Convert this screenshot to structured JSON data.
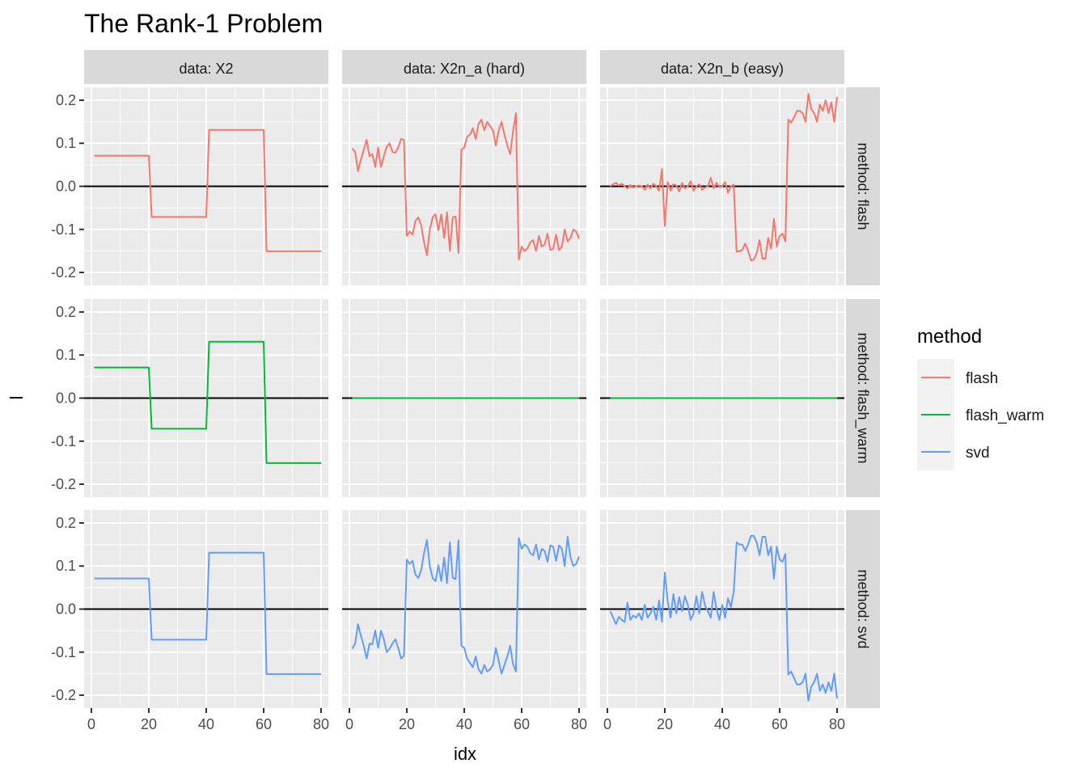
{
  "chart_data": {
    "type": "line",
    "title": "The Rank-1 Problem",
    "xlabel": "idx",
    "ylabel": "l",
    "xlim": [
      0,
      80
    ],
    "ylim": [
      -0.23,
      0.23
    ],
    "x_ticks": [
      0,
      20,
      40,
      60,
      80
    ],
    "x_tick_labels": [
      "0",
      "20",
      "40",
      "60",
      "80"
    ],
    "y_ticks": [
      0.2,
      0.1,
      0.0,
      -0.1,
      -0.2
    ],
    "y_tick_labels": [
      "0.2",
      "0.1",
      "0.0",
      "-0.1",
      "-0.2"
    ],
    "reference_line_y": 0,
    "grid": true,
    "legend": {
      "title": "method",
      "placement": "right",
      "entries": [
        {
          "label": "flash",
          "color": "#F8766D"
        },
        {
          "label": "flash_warm",
          "color": "#00BA38"
        },
        {
          "label": "svd",
          "color": "#619CFF"
        }
      ]
    },
    "columns": [
      {
        "key": "X2",
        "label": "data: X2"
      },
      {
        "key": "X2n_a",
        "label": "data: X2n_a (hard)"
      },
      {
        "key": "X2n_b",
        "label": "data: X2n_b (easy)"
      }
    ],
    "rows": [
      {
        "key": "flash",
        "label": "method: flash",
        "color": "#F8766D"
      },
      {
        "key": "flash_warm",
        "label": "method: flash_warm",
        "color": "#00BA38"
      },
      {
        "key": "svd",
        "label": "method: svd",
        "color": "#619CFF"
      }
    ],
    "series": {
      "X2": {
        "flash": [
          0.071,
          0.071,
          0.071,
          0.071,
          0.071,
          0.071,
          0.071,
          0.071,
          0.071,
          0.071,
          0.071,
          0.071,
          0.071,
          0.071,
          0.071,
          0.071,
          0.071,
          0.071,
          0.071,
          0.071,
          -0.071,
          -0.071,
          -0.071,
          -0.071,
          -0.071,
          -0.071,
          -0.071,
          -0.071,
          -0.071,
          -0.071,
          -0.071,
          -0.071,
          -0.071,
          -0.071,
          -0.071,
          -0.071,
          -0.071,
          -0.071,
          -0.071,
          -0.071,
          0.131,
          0.131,
          0.131,
          0.131,
          0.131,
          0.131,
          0.131,
          0.131,
          0.131,
          0.131,
          0.131,
          0.131,
          0.131,
          0.131,
          0.131,
          0.131,
          0.131,
          0.131,
          0.131,
          0.131,
          -0.151,
          -0.151,
          -0.151,
          -0.151,
          -0.151,
          -0.151,
          -0.151,
          -0.151,
          -0.151,
          -0.151,
          -0.151,
          -0.151,
          -0.151,
          -0.151,
          -0.151,
          -0.151,
          -0.151,
          -0.151,
          -0.151,
          -0.151
        ],
        "flash_warm": [
          0.071,
          0.071,
          0.071,
          0.071,
          0.071,
          0.071,
          0.071,
          0.071,
          0.071,
          0.071,
          0.071,
          0.071,
          0.071,
          0.071,
          0.071,
          0.071,
          0.071,
          0.071,
          0.071,
          0.071,
          -0.071,
          -0.071,
          -0.071,
          -0.071,
          -0.071,
          -0.071,
          -0.071,
          -0.071,
          -0.071,
          -0.071,
          -0.071,
          -0.071,
          -0.071,
          -0.071,
          -0.071,
          -0.071,
          -0.071,
          -0.071,
          -0.071,
          -0.071,
          0.131,
          0.131,
          0.131,
          0.131,
          0.131,
          0.131,
          0.131,
          0.131,
          0.131,
          0.131,
          0.131,
          0.131,
          0.131,
          0.131,
          0.131,
          0.131,
          0.131,
          0.131,
          0.131,
          0.131,
          -0.151,
          -0.151,
          -0.151,
          -0.151,
          -0.151,
          -0.151,
          -0.151,
          -0.151,
          -0.151,
          -0.151,
          -0.151,
          -0.151,
          -0.151,
          -0.151,
          -0.151,
          -0.151,
          -0.151,
          -0.151,
          -0.151,
          -0.151
        ],
        "svd": [
          0.071,
          0.071,
          0.071,
          0.071,
          0.071,
          0.071,
          0.071,
          0.071,
          0.071,
          0.071,
          0.071,
          0.071,
          0.071,
          0.071,
          0.071,
          0.071,
          0.071,
          0.071,
          0.071,
          0.071,
          -0.071,
          -0.071,
          -0.071,
          -0.071,
          -0.071,
          -0.071,
          -0.071,
          -0.071,
          -0.071,
          -0.071,
          -0.071,
          -0.071,
          -0.071,
          -0.071,
          -0.071,
          -0.071,
          -0.071,
          -0.071,
          -0.071,
          -0.071,
          0.131,
          0.131,
          0.131,
          0.131,
          0.131,
          0.131,
          0.131,
          0.131,
          0.131,
          0.131,
          0.131,
          0.131,
          0.131,
          0.131,
          0.131,
          0.131,
          0.131,
          0.131,
          0.131,
          0.131,
          -0.151,
          -0.151,
          -0.151,
          -0.151,
          -0.151,
          -0.151,
          -0.151,
          -0.151,
          -0.151,
          -0.151,
          -0.151,
          -0.151,
          -0.151,
          -0.151,
          -0.151,
          -0.151,
          -0.151,
          -0.151,
          -0.151,
          -0.151
        ]
      },
      "X2n_a": {
        "flash": [
          0.088,
          0.08,
          0.035,
          0.062,
          0.085,
          0.108,
          0.07,
          0.075,
          0.045,
          0.09,
          0.045,
          0.07,
          0.092,
          0.1,
          0.08,
          0.078,
          0.09,
          0.11,
          0.108,
          -0.115,
          -0.105,
          -0.112,
          -0.08,
          -0.072,
          -0.09,
          -0.13,
          -0.16,
          -0.1,
          -0.072,
          -0.065,
          -0.102,
          -0.065,
          -0.12,
          -0.06,
          -0.15,
          -0.072,
          -0.07,
          -0.155,
          0.085,
          0.09,
          0.115,
          0.12,
          0.135,
          0.11,
          0.145,
          0.155,
          0.13,
          0.15,
          0.14,
          0.13,
          0.095,
          0.13,
          0.15,
          0.12,
          0.095,
          0.075,
          0.128,
          0.17,
          -0.17,
          -0.14,
          -0.15,
          -0.145,
          -0.13,
          -0.125,
          -0.15,
          -0.115,
          -0.14,
          -0.135,
          -0.11,
          -0.148,
          -0.145,
          -0.112,
          -0.148,
          -0.14,
          -0.1,
          -0.128,
          -0.12,
          -0.1,
          -0.105,
          -0.122
        ],
        "flash_warm": [
          0,
          0,
          0,
          0,
          0,
          0,
          0,
          0,
          0,
          0,
          0,
          0,
          0,
          0,
          0,
          0,
          0,
          0,
          0,
          0,
          0,
          0,
          0,
          0,
          0,
          0,
          0,
          0,
          0,
          0,
          0,
          0,
          0,
          0,
          0,
          0,
          0,
          0,
          0,
          0,
          0,
          0,
          0,
          0,
          0,
          0,
          0,
          0,
          0,
          0,
          0,
          0,
          0,
          0,
          0,
          0,
          0,
          0,
          0,
          0,
          0,
          0,
          0,
          0,
          0,
          0,
          0,
          0,
          0,
          0,
          0,
          0,
          0,
          0,
          0,
          0,
          0,
          0,
          0,
          0
        ],
        "svd": [
          -0.092,
          -0.08,
          -0.035,
          -0.062,
          -0.085,
          -0.115,
          -0.08,
          -0.082,
          -0.05,
          -0.09,
          -0.05,
          -0.07,
          -0.1,
          -0.092,
          -0.08,
          -0.07,
          -0.09,
          -0.115,
          -0.108,
          0.115,
          0.105,
          0.112,
          0.08,
          0.072,
          0.09,
          0.13,
          0.16,
          0.1,
          0.072,
          0.065,
          0.102,
          0.065,
          0.12,
          0.06,
          0.155,
          0.072,
          0.07,
          0.16,
          -0.085,
          -0.09,
          -0.115,
          -0.125,
          -0.135,
          -0.11,
          -0.14,
          -0.15,
          -0.13,
          -0.145,
          -0.14,
          -0.13,
          -0.09,
          -0.12,
          -0.15,
          -0.13,
          -0.11,
          -0.085,
          -0.128,
          -0.145,
          0.165,
          0.14,
          0.15,
          0.145,
          0.13,
          0.125,
          0.15,
          0.115,
          0.14,
          0.135,
          0.11,
          0.148,
          0.145,
          0.112,
          0.148,
          0.14,
          0.1,
          0.168,
          0.12,
          0.1,
          0.105,
          0.122
        ]
      },
      "X2n_b": {
        "flash": [
          0.0,
          0.005,
          0.008,
          0.002,
          0.006,
          0.0,
          -0.005,
          0.003,
          -0.003,
          0.0,
          0.002,
          0.0,
          -0.008,
          0.004,
          -0.005,
          0.006,
          0.0,
          -0.01,
          0.04,
          -0.092,
          0.01,
          -0.01,
          0.005,
          0.002,
          -0.012,
          0.008,
          -0.005,
          0.0,
          0.012,
          -0.01,
          0.0,
          0.005,
          -0.008,
          -0.003,
          0.0,
          0.02,
          -0.005,
          0.008,
          -0.002,
          0.0,
          0.01,
          -0.015,
          0.0,
          0.004,
          -0.152,
          -0.15,
          -0.148,
          -0.133,
          -0.15,
          -0.172,
          -0.17,
          -0.155,
          -0.125,
          -0.168,
          -0.168,
          -0.12,
          -0.145,
          -0.075,
          -0.14,
          -0.115,
          -0.11,
          -0.128,
          0.155,
          0.148,
          0.16,
          0.175,
          0.175,
          0.17,
          0.15,
          0.215,
          0.18,
          0.17,
          0.15,
          0.19,
          0.175,
          0.2,
          0.17,
          0.195,
          0.15,
          0.208
        ],
        "flash_warm": [
          0,
          0,
          0,
          0,
          0,
          0,
          0,
          0,
          0,
          0,
          0,
          0,
          0,
          0,
          0,
          0,
          0,
          0,
          0,
          0,
          0,
          0,
          0,
          0,
          0,
          0,
          0,
          0,
          0,
          0,
          0,
          0,
          0,
          0,
          0,
          0,
          0,
          0,
          0,
          0,
          0,
          0,
          0,
          0,
          0,
          0,
          0,
          0,
          0,
          0,
          0,
          0,
          0,
          0,
          0,
          0,
          0,
          0,
          0,
          0,
          0,
          0,
          0,
          0,
          0,
          0,
          0,
          0,
          0,
          0,
          0,
          0,
          0,
          0,
          0,
          0,
          0,
          0,
          0,
          0
        ],
        "svd": [
          -0.005,
          -0.02,
          -0.035,
          -0.018,
          -0.025,
          -0.03,
          0.015,
          -0.025,
          -0.015,
          -0.02,
          -0.01,
          -0.025,
          0.01,
          -0.02,
          -0.01,
          0.005,
          -0.025,
          0.02,
          -0.03,
          0.085,
          0.018,
          -0.02,
          0.035,
          -0.01,
          0.028,
          -0.005,
          0.03,
          0.01,
          -0.025,
          -0.01,
          0.03,
          -0.01,
          0.04,
          0.008,
          -0.005,
          -0.02,
          0.04,
          0.0,
          -0.025,
          0.01,
          -0.02,
          0.025,
          0.005,
          0.04,
          0.155,
          0.15,
          0.15,
          0.135,
          0.15,
          0.17,
          0.17,
          0.155,
          0.125,
          0.168,
          0.168,
          0.125,
          0.145,
          0.07,
          0.145,
          0.115,
          0.11,
          0.128,
          -0.152,
          -0.145,
          -0.16,
          -0.175,
          -0.175,
          -0.17,
          -0.15,
          -0.213,
          -0.18,
          -0.17,
          -0.15,
          -0.19,
          -0.175,
          -0.195,
          -0.17,
          -0.19,
          -0.15,
          -0.208
        ]
      }
    }
  }
}
